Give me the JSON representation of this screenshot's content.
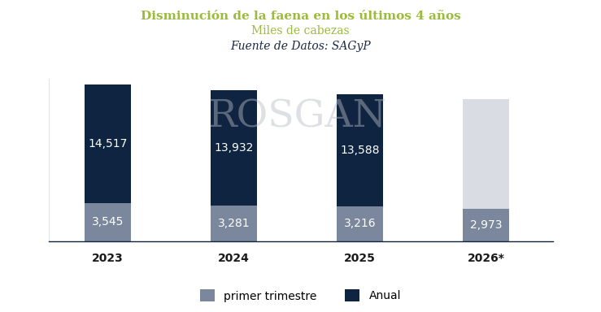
{
  "chart_data": {
    "type": "bar",
    "title": "Disminución de la faena en los últimos 4 años",
    "subtitle": "Miles de cabezas",
    "source": "Fuente de Datos: SAGyP",
    "annotations": [
      "ROSGAN"
    ],
    "categories": [
      "2023",
      "2024",
      "2025",
      "2026*"
    ],
    "series": [
      {
        "name": "Anual",
        "color": "#0f2440",
        "colors": [
          "#0f2440",
          "#0f2440",
          "#0f2440",
          "#d9dce3"
        ],
        "values": [
          14517,
          13932,
          13588,
          13140
        ],
        "value_labels": [
          "14,517",
          "13,932",
          "13,588",
          null
        ]
      },
      {
        "name": "primer trimestre",
        "color": "#7a879c",
        "values": [
          3545,
          3281,
          3216,
          2973
        ],
        "value_labels": [
          "3,545",
          "3,281",
          "3,216",
          "2,973"
        ]
      }
    ],
    "stacked": false,
    "data_labels": true,
    "tick_labels": "x",
    "legend": "lower center",
    "ylim": [
      0,
      15000
    ],
    "grid": false
  }
}
